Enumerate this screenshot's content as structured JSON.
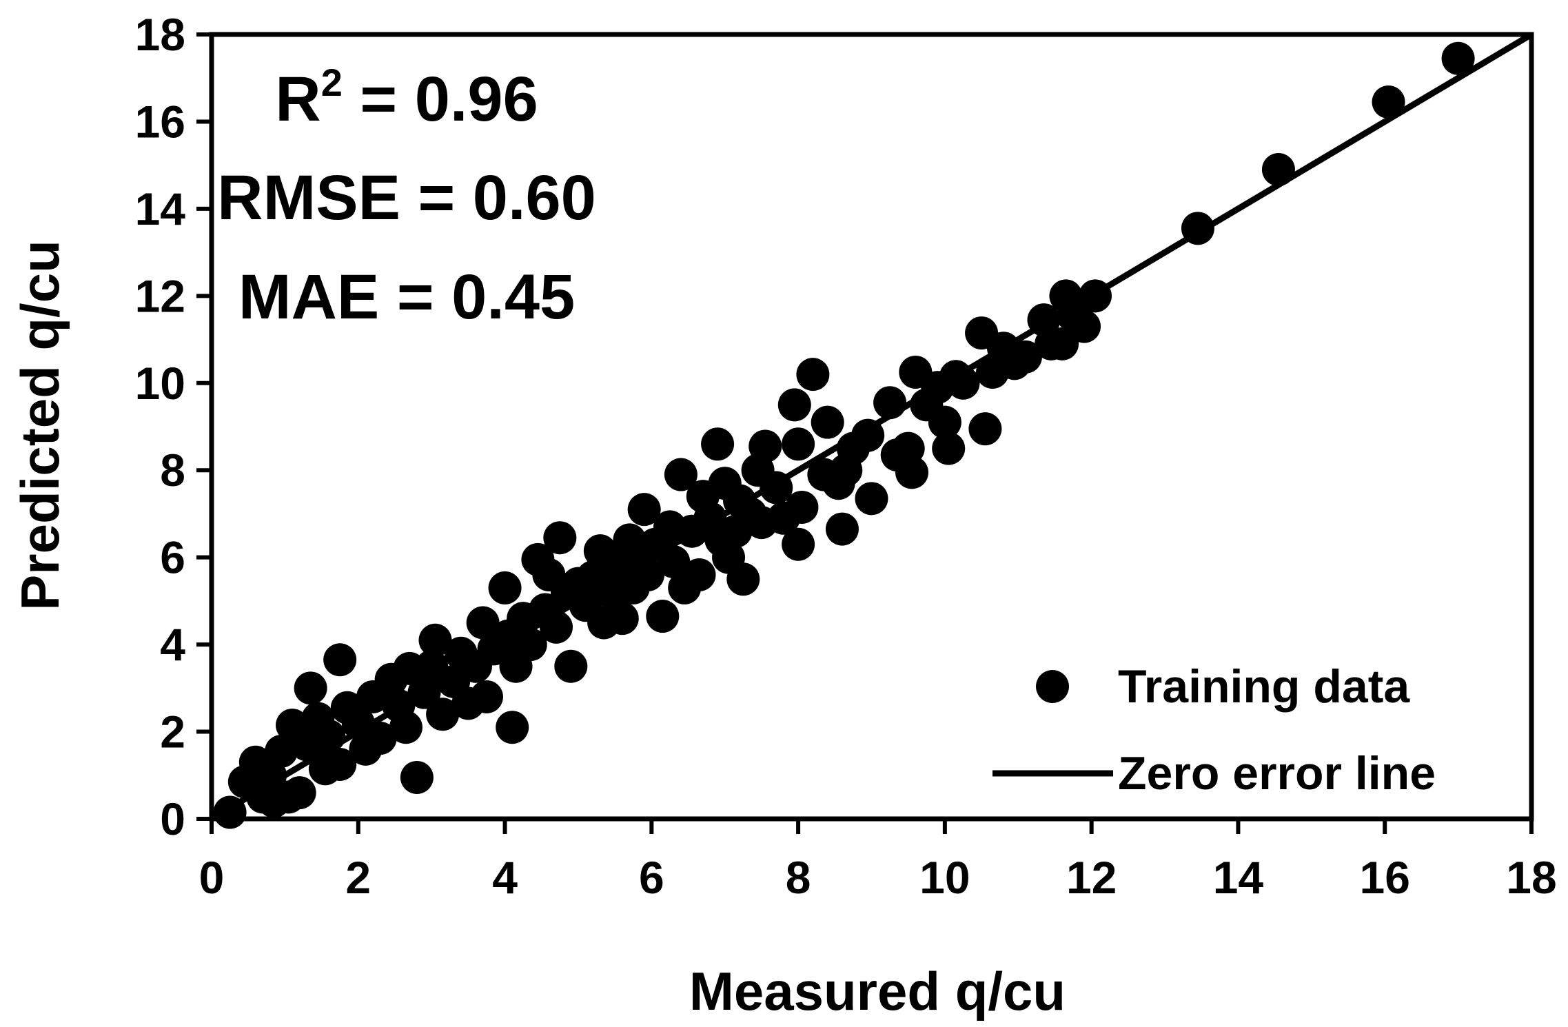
{
  "chart_data": {
    "type": "scatter",
    "xlabel": "Measured q/cu",
    "ylabel": "Predicted q/cu",
    "xlim": [
      0,
      18
    ],
    "ylim": [
      0,
      18
    ],
    "xticks": [
      "0",
      "2",
      "4",
      "6",
      "8",
      "10",
      "12",
      "14",
      "16",
      "18"
    ],
    "yticks": [
      "0",
      "2",
      "4",
      "6",
      "8",
      "10",
      "12",
      "14",
      "16",
      "18"
    ],
    "stats": {
      "r2_label": "R",
      "r2_sup": "2",
      "r2_value": " = 0.96",
      "rmse": "RMSE = 0.60",
      "mae": "MAE = 0.45"
    },
    "legend": {
      "position": "bottom-right",
      "scatter_label": "Training data",
      "line_label": "Zero error line"
    },
    "series": [
      {
        "name": "Training data",
        "points": [
          [
            0.25,
            0.15
          ],
          [
            0.45,
            0.85
          ],
          [
            0.6,
            1.3
          ],
          [
            0.7,
            0.5
          ],
          [
            0.8,
            1.0
          ],
          [
            0.85,
            0.4
          ],
          [
            0.95,
            1.55
          ],
          [
            1.05,
            0.5
          ],
          [
            1.1,
            2.15
          ],
          [
            1.2,
            0.6
          ],
          [
            1.3,
            1.7
          ],
          [
            1.35,
            3.0
          ],
          [
            1.45,
            2.3
          ],
          [
            1.55,
            1.15
          ],
          [
            1.6,
            1.9
          ],
          [
            1.75,
            3.65
          ],
          [
            1.75,
            1.25
          ],
          [
            1.85,
            2.55
          ],
          [
            2.0,
            2.2
          ],
          [
            2.1,
            1.6
          ],
          [
            2.2,
            2.8
          ],
          [
            2.3,
            1.85
          ],
          [
            2.45,
            3.2
          ],
          [
            2.55,
            2.6
          ],
          [
            2.65,
            2.1
          ],
          [
            2.7,
            3.45
          ],
          [
            2.8,
            0.95
          ],
          [
            2.9,
            2.9
          ],
          [
            3.0,
            3.5
          ],
          [
            3.05,
            4.1
          ],
          [
            3.15,
            2.4
          ],
          [
            3.3,
            3.15
          ],
          [
            3.4,
            3.8
          ],
          [
            3.5,
            2.65
          ],
          [
            3.6,
            3.5
          ],
          [
            3.7,
            4.5
          ],
          [
            3.75,
            2.8
          ],
          [
            3.85,
            3.9
          ],
          [
            4.0,
            5.3
          ],
          [
            4.05,
            4.2
          ],
          [
            4.1,
            2.1
          ],
          [
            4.15,
            3.5
          ],
          [
            4.25,
            4.6
          ],
          [
            4.35,
            4.0
          ],
          [
            4.45,
            5.95
          ],
          [
            4.55,
            4.8
          ],
          [
            4.6,
            5.6
          ],
          [
            4.7,
            4.4
          ],
          [
            4.75,
            6.45
          ],
          [
            4.85,
            5.2
          ],
          [
            4.9,
            3.5
          ],
          [
            5.0,
            5.4
          ],
          [
            5.1,
            4.9
          ],
          [
            5.2,
            5.55
          ],
          [
            5.3,
            6.15
          ],
          [
            5.35,
            4.5
          ],
          [
            5.45,
            5.2
          ],
          [
            5.55,
            5.8
          ],
          [
            5.6,
            4.6
          ],
          [
            5.7,
            6.4
          ],
          [
            5.75,
            5.3
          ],
          [
            5.85,
            6.05
          ],
          [
            5.9,
            7.1
          ],
          [
            5.95,
            5.6
          ],
          [
            6.05,
            6.3
          ],
          [
            6.15,
            4.65
          ],
          [
            6.25,
            6.7
          ],
          [
            6.3,
            5.9
          ],
          [
            6.4,
            7.9
          ],
          [
            6.45,
            5.3
          ],
          [
            6.55,
            6.6
          ],
          [
            6.65,
            5.6
          ],
          [
            6.7,
            7.4
          ],
          [
            6.8,
            6.9
          ],
          [
            6.9,
            8.6
          ],
          [
            6.95,
            6.4
          ],
          [
            7.0,
            7.7
          ],
          [
            7.05,
            6.0
          ],
          [
            7.15,
            6.6
          ],
          [
            7.2,
            7.3
          ],
          [
            7.25,
            5.5
          ],
          [
            7.35,
            7.0
          ],
          [
            7.45,
            8.0
          ],
          [
            7.5,
            6.8
          ],
          [
            7.55,
            8.55
          ],
          [
            7.7,
            7.6
          ],
          [
            7.8,
            6.9
          ],
          [
            7.95,
            9.5
          ],
          [
            8.0,
            6.3
          ],
          [
            8.0,
            8.6
          ],
          [
            8.05,
            7.15
          ],
          [
            8.2,
            10.2
          ],
          [
            8.35,
            7.9
          ],
          [
            8.4,
            9.1
          ],
          [
            8.55,
            7.7
          ],
          [
            8.6,
            6.65
          ],
          [
            8.65,
            8.0
          ],
          [
            8.75,
            8.5
          ],
          [
            8.95,
            8.8
          ],
          [
            9.0,
            7.35
          ],
          [
            9.25,
            9.55
          ],
          [
            9.35,
            8.35
          ],
          [
            9.5,
            8.5
          ],
          [
            9.55,
            7.95
          ],
          [
            9.6,
            10.25
          ],
          [
            9.75,
            9.5
          ],
          [
            9.9,
            9.9
          ],
          [
            10.0,
            9.1
          ],
          [
            10.05,
            8.5
          ],
          [
            10.15,
            10.15
          ],
          [
            10.25,
            10.0
          ],
          [
            10.5,
            11.15
          ],
          [
            10.55,
            8.95
          ],
          [
            10.65,
            10.25
          ],
          [
            10.8,
            10.8
          ],
          [
            10.95,
            10.45
          ],
          [
            11.1,
            10.6
          ],
          [
            11.35,
            11.45
          ],
          [
            11.45,
            10.9
          ],
          [
            11.6,
            10.9
          ],
          [
            11.65,
            12.0
          ],
          [
            11.75,
            11.55
          ],
          [
            11.9,
            11.3
          ],
          [
            12.05,
            12.0
          ],
          [
            13.45,
            13.55
          ],
          [
            14.55,
            14.9
          ],
          [
            16.05,
            16.45
          ],
          [
            17.0,
            17.45
          ]
        ]
      },
      {
        "name": "Zero error line",
        "x": [
          0,
          18
        ],
        "y": [
          0,
          18
        ]
      }
    ]
  }
}
